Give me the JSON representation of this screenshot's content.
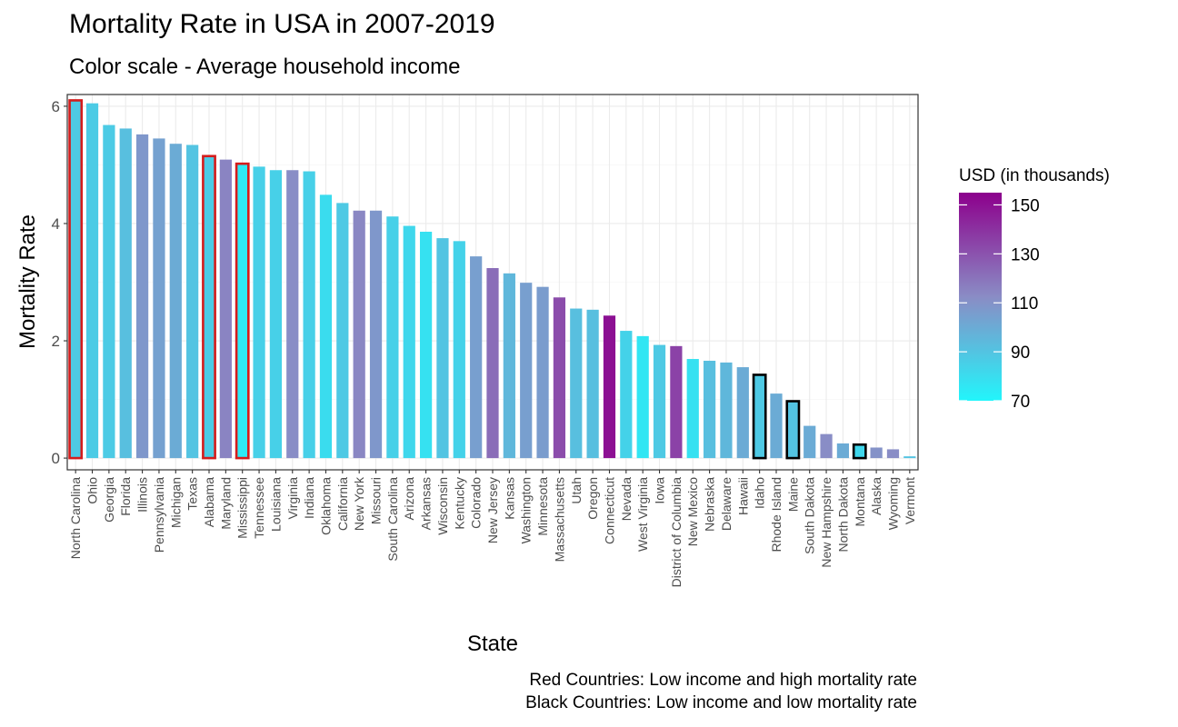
{
  "chart_data": {
    "type": "bar",
    "title": "Mortality Rate in USA in 2007-2019",
    "subtitle": "Color scale - Average household income",
    "xlabel": "State",
    "ylabel": "Mortality Rate",
    "ylim": [
      -0.2,
      6.2
    ],
    "yticks": [
      0,
      2,
      4,
      6
    ],
    "grid": true,
    "legend": {
      "title": "USD (in thousands)",
      "position": "right",
      "ticks": [
        70,
        90,
        110,
        130,
        150
      ],
      "range": [
        70,
        155
      ],
      "low_color": "#22f5fb",
      "mid_color": "#8a8cc5",
      "high_color": "#8c008c"
    },
    "categories": [
      "North Carolina",
      "Ohio",
      "Georgia",
      "Florida",
      "Illinois",
      "Pennsylvania",
      "Michigan",
      "Texas",
      "Alabama",
      "Maryland",
      "Mississippi",
      "Tennessee",
      "Louisiana",
      "Virginia",
      "Indiana",
      "Oklahoma",
      "California",
      "New York",
      "Missouri",
      "South Carolina",
      "Arizona",
      "Arkansas",
      "Wisconsin",
      "Kentucky",
      "Colorado",
      "New Jersey",
      "Kansas",
      "Washington",
      "Minnesota",
      "Massachusetts",
      "Utah",
      "Oregon",
      "Connecticut",
      "Nevada",
      "West Virginia",
      "Iowa",
      "District of Columbia",
      "New Mexico",
      "Nebraska",
      "Delaware",
      "Hawaii",
      "Idaho",
      "Rhode Island",
      "Maine",
      "South Dakota",
      "New Hampshire",
      "North Dakota",
      "Montana",
      "Alaska",
      "Wyoming",
      "Vermont"
    ],
    "values": [
      6.1,
      6.05,
      5.68,
      5.62,
      5.52,
      5.45,
      5.36,
      5.34,
      5.15,
      5.09,
      5.02,
      4.97,
      4.91,
      4.91,
      4.89,
      4.49,
      4.35,
      4.22,
      4.22,
      4.12,
      3.96,
      3.86,
      3.75,
      3.7,
      3.44,
      3.24,
      3.15,
      2.99,
      2.92,
      2.74,
      2.55,
      2.53,
      2.43,
      2.17,
      2.08,
      1.93,
      1.91,
      1.69,
      1.66,
      1.63,
      1.55,
      1.42,
      1.1,
      0.97,
      0.55,
      0.41,
      0.25,
      0.23,
      0.18,
      0.15,
      0.03
    ],
    "income": [
      88,
      87,
      87,
      92,
      108,
      104,
      100,
      90,
      87,
      115,
      75,
      85,
      85,
      112,
      85,
      80,
      88,
      114,
      108,
      85,
      82,
      78,
      90,
      84,
      105,
      122,
      95,
      105,
      106,
      132,
      92,
      92,
      150,
      84,
      76,
      88,
      135,
      78,
      92,
      95,
      100,
      88,
      100,
      90,
      100,
      112,
      100,
      82,
      110,
      112,
      90
    ],
    "outline_red": [
      "North Carolina",
      "Alabama",
      "Mississippi"
    ],
    "outline_black": [
      "Idaho",
      "Maine",
      "Montana"
    ],
    "annotations": [
      "Red Countries: Low income and high mortality rate",
      "Black Countries: Low income and low mortality rate"
    ]
  }
}
